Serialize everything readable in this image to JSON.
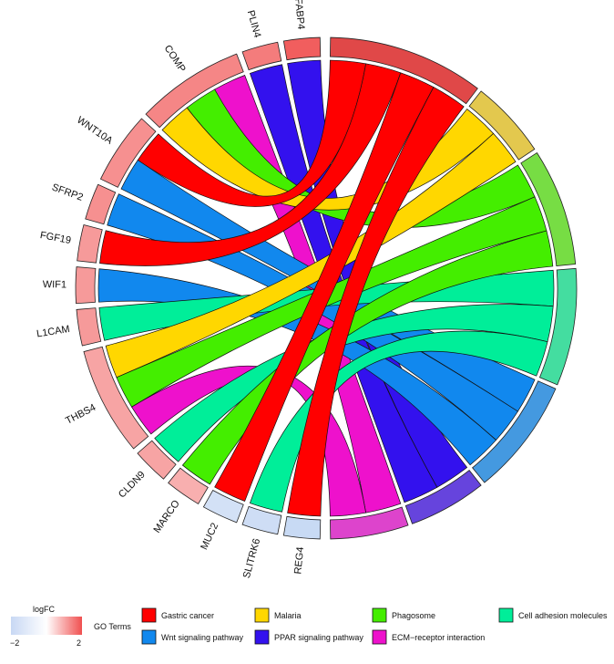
{
  "diagram": {
    "type": "GOChord",
    "genes": [
      {
        "name": "FABP4",
        "logfc": 1.6
      },
      {
        "name": "PLIN4",
        "logfc": 1.3
      },
      {
        "name": "COMP",
        "logfc": 1.2
      },
      {
        "name": "WNT10A",
        "logfc": 1.1
      },
      {
        "name": "SFRP2",
        "logfc": 1.1
      },
      {
        "name": "FGF19",
        "logfc": 1.0
      },
      {
        "name": "WIF1",
        "logfc": 1.0
      },
      {
        "name": "L1CAM",
        "logfc": 1.0
      },
      {
        "name": "THBS4",
        "logfc": 0.9
      },
      {
        "name": "CLDN9",
        "logfc": 0.9
      },
      {
        "name": "MARCO",
        "logfc": 0.8
      },
      {
        "name": "MUC2",
        "logfc": -0.8
      },
      {
        "name": "SLITRK6",
        "logfc": -0.9
      },
      {
        "name": "REG4",
        "logfc": -1.0
      }
    ],
    "terms": [
      {
        "name": "Gastric cancer",
        "color": "#ff0000",
        "arc_color": "#e04848"
      },
      {
        "name": "Malaria",
        "color": "#ffd700",
        "arc_color": "#e3c84e"
      },
      {
        "name": "Phagosome",
        "color": "#44ee00",
        "arc_color": "#77dd44"
      },
      {
        "name": "Cell adhesion molecules",
        "color": "#00ee99",
        "arc_color": "#44dda0"
      },
      {
        "name": "Wnt signaling pathway",
        "color": "#1188ee",
        "arc_color": "#4499e0"
      },
      {
        "name": "PPAR signaling pathway",
        "color": "#3311ee",
        "arc_color": "#6644dd"
      },
      {
        "name": "ECM−receptor interaction",
        "color": "#ee11cc",
        "arc_color": "#dd44cc"
      }
    ],
    "links": [
      {
        "gene": "FABP4",
        "term": "PPAR signaling pathway"
      },
      {
        "gene": "PLIN4",
        "term": "PPAR signaling pathway"
      },
      {
        "gene": "COMP",
        "term": "ECM−receptor interaction"
      },
      {
        "gene": "COMP",
        "term": "Phagosome"
      },
      {
        "gene": "COMP",
        "term": "Malaria"
      },
      {
        "gene": "WNT10A",
        "term": "Gastric cancer"
      },
      {
        "gene": "WNT10A",
        "term": "Wnt signaling pathway"
      },
      {
        "gene": "SFRP2",
        "term": "Wnt signaling pathway"
      },
      {
        "gene": "FGF19",
        "term": "Gastric cancer"
      },
      {
        "gene": "WIF1",
        "term": "Wnt signaling pathway"
      },
      {
        "gene": "L1CAM",
        "term": "Cell adhesion molecules"
      },
      {
        "gene": "THBS4",
        "term": "Malaria"
      },
      {
        "gene": "THBS4",
        "term": "Phagosome"
      },
      {
        "gene": "THBS4",
        "term": "ECM−receptor interaction"
      },
      {
        "gene": "CLDN9",
        "term": "Cell adhesion molecules"
      },
      {
        "gene": "MARCO",
        "term": "Phagosome"
      },
      {
        "gene": "MUC2",
        "term": "Gastric cancer"
      },
      {
        "gene": "SLITRK6",
        "term": "Cell adhesion molecules"
      },
      {
        "gene": "REG4",
        "term": "Gastric cancer"
      }
    ],
    "legend": {
      "logfc_title": "logFC",
      "logfc_min": "−2",
      "logfc_max": "2",
      "logfc_low_color": "#2255cc",
      "logfc_mid_color": "#ffffff",
      "logfc_high_color": "#e02020",
      "terms_title": "GO Terms"
    }
  }
}
